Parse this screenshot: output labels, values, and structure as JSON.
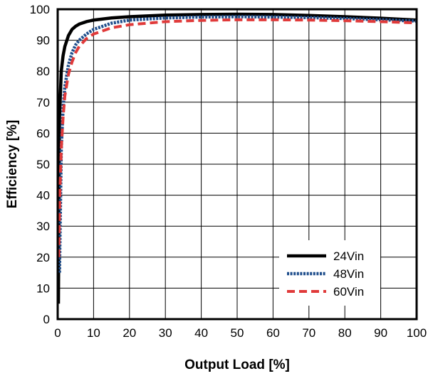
{
  "chart_data": {
    "type": "line",
    "title": "",
    "xlabel": "Output Load [%]",
    "ylabel": "Efficiency [%]",
    "xlim": [
      0,
      100
    ],
    "ylim": [
      0,
      100
    ],
    "xticks": [
      "0",
      "10",
      "20",
      "30",
      "40",
      "50",
      "60",
      "70",
      "80",
      "90",
      "100"
    ],
    "yticks": [
      "0",
      "10",
      "20",
      "30",
      "40",
      "50",
      "60",
      "70",
      "80",
      "90",
      "100"
    ],
    "grid": true,
    "legend_position": "bottom-right",
    "series": [
      {
        "name": "24Vin",
        "color": "#000000",
        "style": "solid",
        "x": [
          0.2,
          0.5,
          1,
          1.5,
          2,
          3,
          4,
          5,
          6,
          8,
          10,
          15,
          20,
          30,
          40,
          50,
          60,
          70,
          80,
          90,
          100
        ],
        "y": [
          5,
          65,
          80,
          85,
          88,
          91.5,
          93.5,
          94.5,
          95.2,
          96,
          96.5,
          97.2,
          97.6,
          98.1,
          98.3,
          98.4,
          98.3,
          98.0,
          97.6,
          97.1,
          96.5
        ]
      },
      {
        "name": "48Vin",
        "color": "#1f4e8c",
        "style": "dotted",
        "x": [
          0.5,
          1,
          1.5,
          2,
          3,
          4,
          5,
          6,
          8,
          10,
          15,
          20,
          30,
          40,
          50,
          60,
          70,
          80,
          90,
          100
        ],
        "y": [
          15,
          55,
          68,
          75,
          82,
          86,
          88.5,
          90,
          92,
          93.5,
          95.5,
          96.5,
          97.2,
          97.5,
          97.6,
          97.5,
          97.3,
          97.0,
          96.6,
          96.2
        ]
      },
      {
        "name": "60Vin",
        "color": "#e03a3a",
        "style": "dashed",
        "x": [
          0.3,
          0.6,
          1,
          1.5,
          2,
          3,
          4,
          5,
          6,
          8,
          10,
          15,
          20,
          30,
          40,
          50,
          60,
          70,
          80,
          90,
          100
        ],
        "y": [
          20,
          40,
          55,
          65,
          72,
          79,
          83,
          86,
          88,
          90.5,
          92,
          94,
          95,
          96,
          96.4,
          96.6,
          96.6,
          96.5,
          96.3,
          96.0,
          95.6
        ]
      }
    ]
  }
}
